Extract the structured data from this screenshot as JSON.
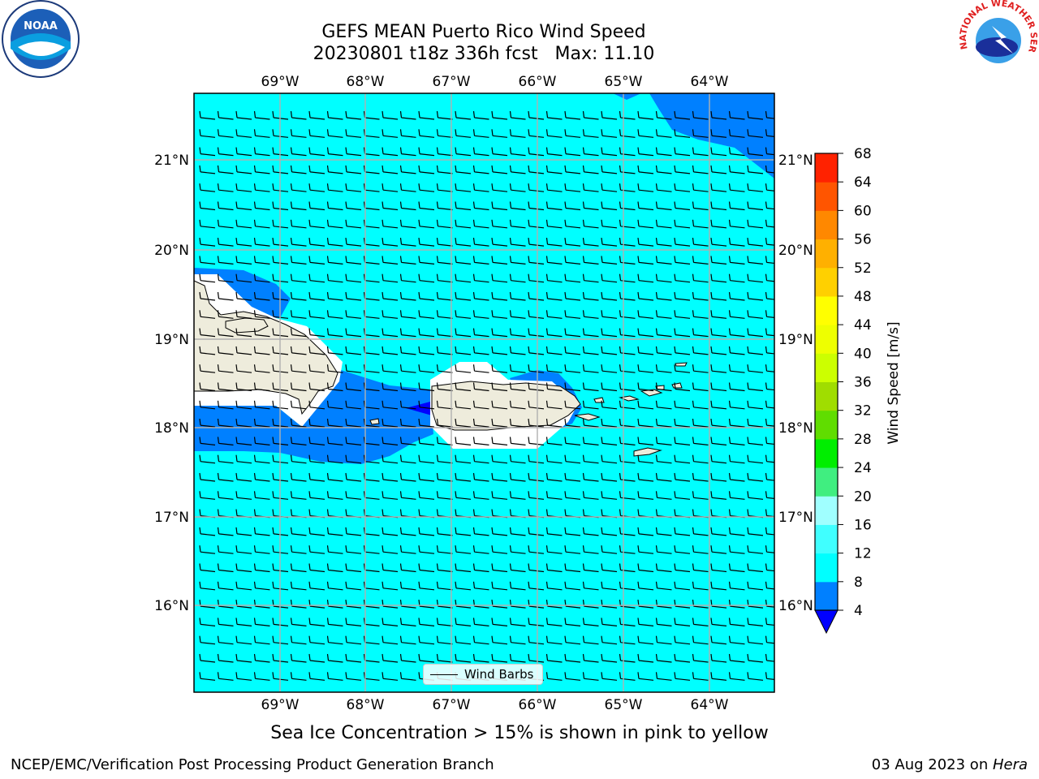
{
  "header": {
    "title_line1": "GEFS MEAN Puerto Rico Wind Speed",
    "title_line2": "20230801 t18z 336h fcst   Max: 11.10"
  },
  "map": {
    "lon_labels": [
      "69°W",
      "68°W",
      "67°W",
      "66°W",
      "65°W",
      "64°W"
    ],
    "lat_labels": [
      "21°N",
      "20°N",
      "19°N",
      "18°N",
      "17°N",
      "16°N"
    ],
    "ocean_color": "#00ffff",
    "band_color": "#0080ff",
    "land_color": "#eeecdc",
    "legend_label": "Wind Barbs"
  },
  "colorbar": {
    "label": "Wind Speed [m/s]",
    "ticks": [
      "4",
      "8",
      "12",
      "16",
      "20",
      "24",
      "28",
      "32",
      "36",
      "40",
      "44",
      "48",
      "52",
      "56",
      "60",
      "64",
      "68"
    ],
    "colors": [
      "#0080ff",
      "#00ffff",
      "#40ffff",
      "#a0ffff",
      "#40ee80",
      "#00ee00",
      "#60dd00",
      "#a0dd00",
      "#ccff00",
      "#eeff00",
      "#ffff00",
      "#ffd000",
      "#ffb000",
      "#ff8800",
      "#ff5500",
      "#ff2200"
    ],
    "under_color": "#0000ff"
  },
  "note": "Sea Ice Concentration > 15% is shown in pink to yellow",
  "footer": {
    "left": "NCEP/EMC/Verification Post Processing Product Generation Branch",
    "right_prefix": "03 Aug 2023 on ",
    "right_host": "Hera"
  },
  "logos": {
    "noaa": "NOAA",
    "nws": "NATIONAL WEATHER SERVICE"
  }
}
